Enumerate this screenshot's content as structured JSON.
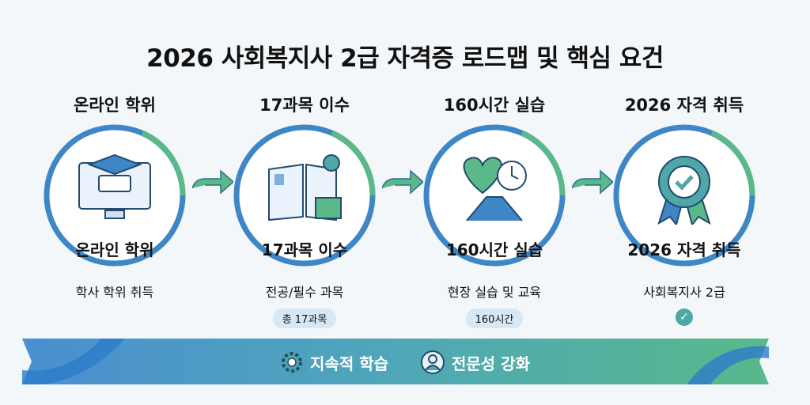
{
  "title": "2026 사회복지사 2급 자격증 로드맵 및 핵심 요건",
  "steps": [
    {
      "top_label": "온라인 학위",
      "inner_label": "온라인 학위",
      "description": "학사 학위 취득",
      "icon": "graduation-monitor-icon"
    },
    {
      "top_label": "17과목 이수",
      "inner_label": "17과목 이수",
      "description": "전공/필수 과목",
      "badge": "총 17과목",
      "icon": "open-book-icon"
    },
    {
      "top_label": "160시간 실습",
      "inner_label": "160시간 실습",
      "description": "현장 실습 및 교육",
      "badge": "160시간",
      "icon": "handshake-clock-icon"
    },
    {
      "top_label": "2026 자격 취득",
      "inner_label": "2026 자격 취득",
      "description": "사회복지사 2급",
      "icon": "award-badge-icon",
      "check": "✓"
    }
  ],
  "banner": {
    "items": [
      {
        "label": "지속적 학습",
        "icon": "gear-icon"
      },
      {
        "label": "전문성 강화",
        "icon": "person-icon"
      }
    ]
  },
  "colors": {
    "blue": "#3f86c6",
    "green": "#5bb889",
    "teal": "#4fa7a8",
    "background": "#f3f7fa"
  }
}
